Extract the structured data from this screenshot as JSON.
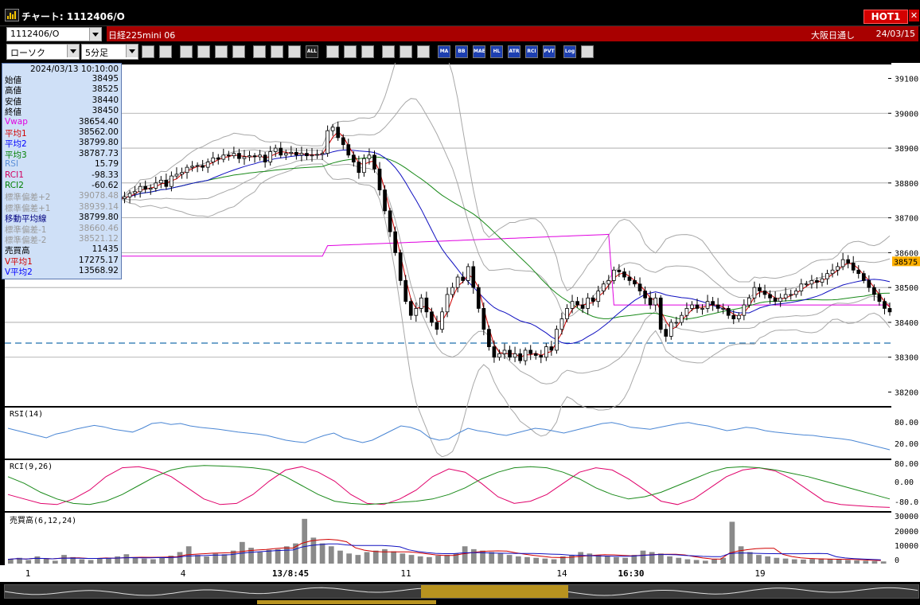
{
  "window": {
    "title": "チャート: 1112406/O",
    "hot_label": "HOT1",
    "close_label": "✕"
  },
  "symbol": {
    "code": "1112406/O",
    "name": "日経225mini 06",
    "session": "大阪日通し",
    "date": "24/03/15"
  },
  "toolbar": {
    "chart_type": "ローソク",
    "interval": "5分足",
    "buttons": [
      "zoom-icon",
      "cursor-icon",
      "crosshair-icon",
      "line-chart-icon",
      "bar-chart-icon",
      "candle-icon",
      "chart-settings-icon",
      "candle-style-icon",
      "candle-style2-icon",
      "ALL",
      "pen-icon",
      "pointer-icon",
      "arrow-icon",
      "gear-icon",
      "tools-icon",
      "color-icon",
      "MA",
      "BB",
      "MAE",
      "HL",
      "ATR",
      "RCI",
      "PVT",
      "Log",
      "exit-icon"
    ]
  },
  "info": {
    "datetime": "2024/03/13  10:10:00",
    "rows": [
      {
        "label": "始値",
        "value": "38495",
        "color": "#000000"
      },
      {
        "label": "高値",
        "value": "38525",
        "color": "#000000"
      },
      {
        "label": "安値",
        "value": "38440",
        "color": "#000000"
      },
      {
        "label": "終値",
        "value": "38450",
        "color": "#000000"
      },
      {
        "label": "Vwap",
        "value": "38654.40",
        "color": "#e000e0"
      },
      {
        "label": "平均1",
        "value": "38562.00",
        "color": "#d00000"
      },
      {
        "label": "平均2",
        "value": "38799.80",
        "color": "#0000ff"
      },
      {
        "label": "平均3",
        "value": "38787.73",
        "color": "#008000"
      },
      {
        "label": "RSI",
        "value": "15.79",
        "color": "#5b8fd8"
      },
      {
        "label": "RCI1",
        "value": "-98.33",
        "color": "#d00060"
      },
      {
        "label": "RCI2",
        "value": "-60.62",
        "color": "#008000"
      },
      {
        "label": "標準偏差+2",
        "value": "39078.48",
        "color": "#9a9a9a"
      },
      {
        "label": "標準偏差+1",
        "value": "38939.14",
        "color": "#9a9a9a"
      },
      {
        "label": "移動平均線",
        "value": "38799.80",
        "color": "#000080"
      },
      {
        "label": "標準偏差-1",
        "value": "38660.46",
        "color": "#9a9a9a"
      },
      {
        "label": "標準偏差-2",
        "value": "38521.12",
        "color": "#9a9a9a"
      },
      {
        "label": "売買高",
        "value": "11435",
        "color": "#000000"
      },
      {
        "label": "V平均1",
        "value": "17275.17",
        "color": "#d00000"
      },
      {
        "label": "V平均2",
        "value": "13568.92",
        "color": "#0000ff"
      }
    ]
  },
  "price_axis": {
    "ticks": [
      "39100",
      "39000",
      "38900",
      "38800",
      "38700",
      "38600",
      "38500",
      "38400",
      "38300",
      "38200"
    ],
    "current": "38575"
  },
  "panels": {
    "rsi": {
      "label": "RSI(14)",
      "ticks": [
        "80.00",
        "20.00"
      ]
    },
    "rci": {
      "label": "RCI(9,26)",
      "ticks": [
        "80.00",
        "0.00",
        "-80.0"
      ]
    },
    "volume": {
      "label": "売買高(6,12,24)",
      "ticks": [
        "30000",
        "20000",
        "10000",
        "0"
      ]
    }
  },
  "time_axis": {
    "labels": [
      "1",
      "4",
      "13/8:45",
      "11",
      "14",
      "16:30",
      "19"
    ]
  },
  "colors": {
    "candle": "#000000",
    "ma1": "#d00000",
    "ma2": "#1010c0",
    "ma3": "#1a8a1a",
    "vwap": "#e000e0",
    "band": "#a8a8a8",
    "rsi": "#4a86d4",
    "rci1": "#e0006a",
    "rci2": "#1a8a1a",
    "vol": "#8a8a8a",
    "hline": "#1f6fae"
  },
  "chart_data": {
    "type": "candlestick",
    "interval": "5分足",
    "price_range": [
      38200,
      39100
    ],
    "closes": [
      38755,
      38760,
      38770,
      38775,
      38790,
      38782,
      38785,
      38800,
      38808,
      38790,
      38820,
      38825,
      38830,
      38845,
      38848,
      38850,
      38845,
      38860,
      38872,
      38868,
      38880,
      38878,
      38885,
      38870,
      38875,
      38878,
      38875,
      38880,
      38860,
      38890,
      38900,
      38880,
      38885,
      38888,
      38880,
      38885,
      38878,
      38880,
      38882,
      38885,
      38950,
      38960,
      38930,
      38910,
      38880,
      38860,
      38830,
      38870,
      38880,
      38840,
      38780,
      38720,
      38660,
      38600,
      38520,
      38460,
      38420,
      38440,
      38470,
      38430,
      38400,
      38380,
      38430,
      38480,
      38500,
      38530,
      38520,
      38560,
      38500,
      38440,
      38380,
      38330,
      38300,
      38310,
      38320,
      38300,
      38310,
      38290,
      38320,
      38310,
      38305,
      38300,
      38330,
      38320,
      38380,
      38410,
      38440,
      38460,
      38450,
      38440,
      38470,
      38460,
      38490,
      38510,
      38520,
      38550,
      38545,
      38530,
      38520,
      38510,
      38490,
      38470,
      38450,
      38470,
      38380,
      38360,
      38400,
      38400,
      38420,
      38440,
      38450,
      38440,
      38440,
      38460,
      38450,
      38440,
      38440,
      38420,
      38410,
      38420,
      38450,
      38470,
      38500,
      38490,
      38480,
      38470,
      38460,
      38470,
      38480,
      38480,
      38490,
      38510,
      38510,
      38520,
      38515,
      38525,
      38540,
      38550,
      38560,
      38580,
      38570,
      38550,
      38540,
      38520,
      38500,
      38480,
      38460,
      38440,
      38430
    ],
    "vwap": "38654.40",
    "ma1": "38562.00",
    "ma2": "38799.80",
    "ma3": "38787.73",
    "rsi": [
      60,
      55,
      50,
      45,
      40,
      48,
      52,
      58,
      62,
      66,
      63,
      58,
      55,
      52,
      60,
      70,
      72,
      68,
      70,
      65,
      62,
      60,
      58,
      55,
      52,
      50,
      48,
      45,
      40,
      35,
      32,
      30,
      38,
      45,
      50,
      40,
      35,
      30,
      35,
      45,
      55,
      65,
      62,
      55,
      40,
      35,
      38,
      50,
      60,
      55,
      52,
      48,
      45,
      50,
      55,
      60,
      58,
      54,
      50,
      55,
      60,
      65,
      70,
      72,
      68,
      62,
      60,
      58,
      62,
      66,
      70,
      72,
      68,
      65,
      60,
      55,
      58,
      62,
      60,
      55,
      52,
      50,
      48,
      46,
      45,
      42,
      40,
      38,
      35,
      30,
      25,
      20,
      15
    ],
    "rci1": [
      -40,
      -60,
      -80,
      -85,
      -60,
      -20,
      40,
      80,
      85,
      70,
      40,
      -10,
      -60,
      -85,
      -80,
      -40,
      20,
      70,
      85,
      60,
      20,
      -40,
      -80,
      -85,
      -60,
      -20,
      40,
      75,
      60,
      10,
      -50,
      -80,
      -70,
      -40,
      10,
      60,
      80,
      70,
      30,
      -20,
      -70,
      -85,
      -60,
      -10,
      40,
      70,
      80,
      65,
      30,
      -20,
      -70,
      -85,
      -90,
      -95,
      -98
    ],
    "rci2": [
      40,
      10,
      -30,
      -60,
      -80,
      -85,
      -70,
      -40,
      0,
      40,
      70,
      85,
      90,
      88,
      85,
      80,
      70,
      40,
      0,
      -40,
      -70,
      -80,
      -85,
      -80,
      -75,
      -70,
      -60,
      -40,
      -10,
      30,
      60,
      80,
      85,
      80,
      60,
      30,
      -10,
      -40,
      -60,
      -50,
      -30,
      0,
      30,
      60,
      80,
      85,
      80,
      70,
      55,
      40,
      20,
      0,
      -20,
      -40,
      -60
    ],
    "volume": [
      3000,
      4000,
      2500,
      5000,
      3500,
      2000,
      6000,
      4500,
      3000,
      2500,
      3500,
      4000,
      5000,
      6500,
      4000,
      3500,
      3000,
      4500,
      5500,
      8000,
      12000,
      6000,
      5000,
      7000,
      6500,
      9000,
      15000,
      11000,
      8000,
      9500,
      10000,
      12000,
      14000,
      31000,
      18000,
      14000,
      12000,
      9000,
      7000,
      6000,
      8000,
      9000,
      10000,
      8500,
      7000,
      6000,
      5000,
      4500,
      5500,
      6000,
      7000,
      12000,
      10000,
      9000,
      8000,
      7000,
      6000,
      5000,
      4500,
      4000,
      3500,
      3000,
      5000,
      6000,
      8000,
      7000,
      6000,
      5000,
      4500,
      4000,
      6000,
      9000,
      8000,
      7000,
      5000,
      4000,
      3000,
      2500,
      2000,
      3000,
      4000,
      29000,
      12000,
      8000,
      6000,
      5000,
      4000,
      3500,
      3000,
      2800,
      3200,
      3500,
      3000,
      2800,
      2500,
      2200,
      2000,
      1800,
      1500
    ]
  }
}
